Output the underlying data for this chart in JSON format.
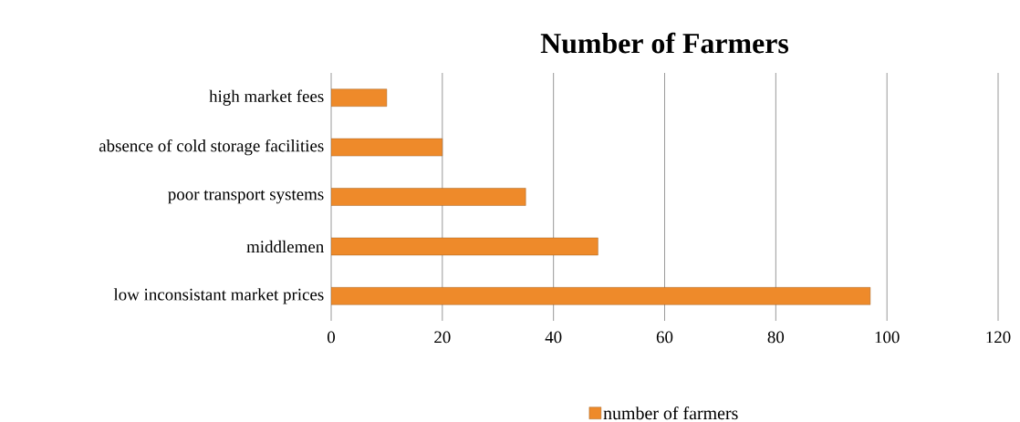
{
  "chart_data": {
    "type": "bar",
    "orientation": "horizontal",
    "title": "Number of Farmers",
    "categories": [
      "high market fees",
      "absence of cold storage facilities",
      "poor transport systems",
      "middlemen",
      "low inconsistant market prices"
    ],
    "series": [
      {
        "name": "number of farmers",
        "color": "#ee8a2a",
        "values": [
          10,
          20,
          35,
          48,
          97
        ]
      }
    ],
    "xlim": [
      0,
      120
    ],
    "xticks": [
      0,
      20,
      40,
      60,
      80,
      100,
      120
    ],
    "grid": "x",
    "legend": "bottom"
  }
}
